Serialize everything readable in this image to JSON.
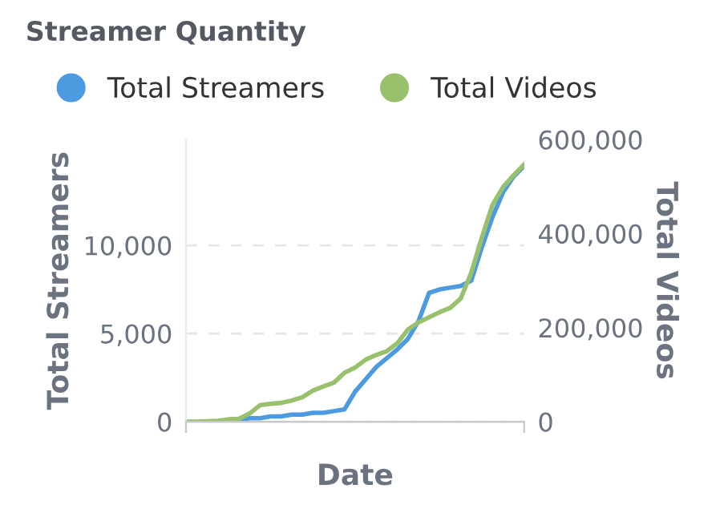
{
  "chart_data": {
    "type": "line",
    "title": "Streamer Quantity",
    "xlabel": "Date",
    "ylabel": "Total Streamers",
    "y2label": "Total Videos",
    "categories": [
      null,
      null,
      null,
      null,
      null,
      null,
      null,
      null,
      null,
      null,
      null,
      null,
      null,
      null,
      null,
      null,
      null,
      null,
      null,
      null,
      null,
      null,
      null,
      null,
      null,
      null,
      null,
      null,
      null,
      null,
      null,
      null,
      null
    ],
    "series": [
      {
        "name": "Total Streamers",
        "color": "#4c9be0",
        "values": [
          null,
          null,
          null,
          null,
          0,
          100,
          200,
          200,
          300,
          300,
          400,
          400,
          500,
          500,
          600,
          700,
          1700,
          2400,
          3100,
          3600,
          4100,
          4700,
          5700,
          7300,
          7500,
          7600,
          7700,
          8000,
          9900,
          11600,
          13000,
          13900,
          14500
        ]
      },
      {
        "name": "Total Videos",
        "color": "#99c06c",
        "axis": "y2",
        "values": [
          0,
          0,
          1000,
          2000,
          5000,
          6000,
          17000,
          35000,
          38000,
          40000,
          45000,
          52000,
          66000,
          75000,
          83000,
          104000,
          115000,
          132000,
          142000,
          150000,
          167000,
          196000,
          211000,
          222000,
          233000,
          242000,
          262000,
          317000,
          392000,
          461000,
          499000,
          524000,
          547000
        ]
      }
    ],
    "ylim": [
      0,
      16000
    ],
    "yticks": [
      0,
      {
        "value": 5000,
        "label": "5,000"
      },
      {
        "value": 10000,
        "label": "10,000"
      }
    ],
    "y2lim": [
      0,
      600000
    ],
    "y2ticks": [
      0,
      {
        "value": 200000,
        "label": "200,000"
      },
      {
        "value": 400000,
        "label": "400,000"
      },
      {
        "value": 600000,
        "label": "600,000"
      }
    ],
    "grid": "y",
    "legend": "top left",
    "marker": "none",
    "line_style": "solid"
  }
}
